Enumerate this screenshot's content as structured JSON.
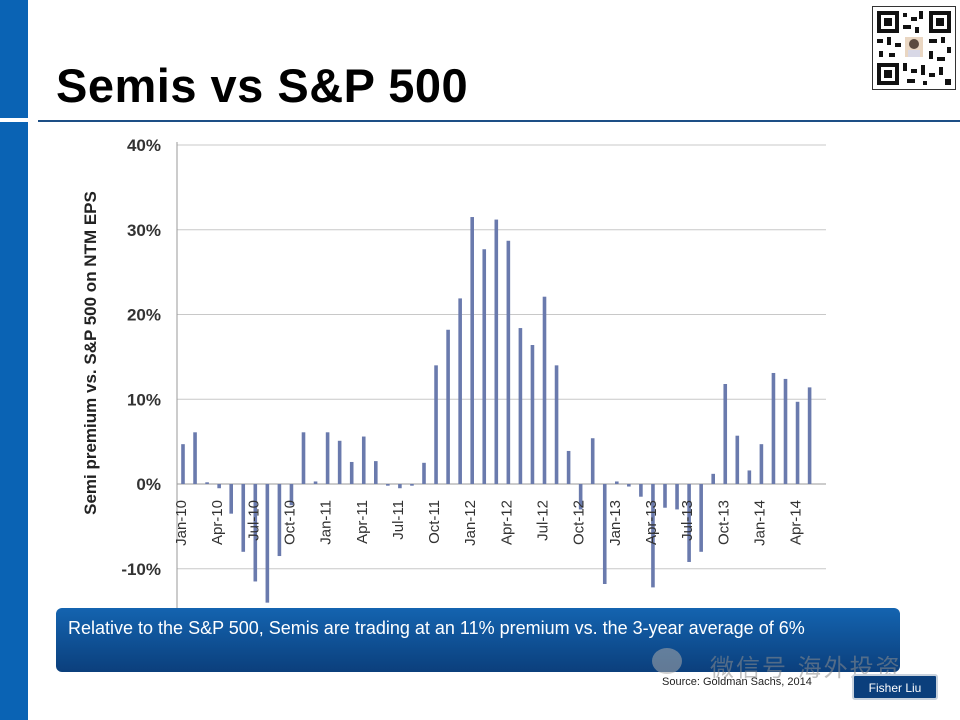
{
  "slide": {
    "title": "Semis vs S&P 500",
    "callout": "Relative to the S&P 500, Semis are trading at an 11% premium vs. the 3-year average of 6%",
    "source": "Source: Goldman Sachs, 2014",
    "watermark": "微信号 海外投资",
    "tag": "Fisher Liu"
  },
  "chart_data": {
    "type": "bar",
    "title": "",
    "xlabel": "",
    "ylabel": "Semi premium vs. S&P 500 on NTM EPS",
    "ylim": [
      -14,
      40
    ],
    "yticks": [
      "40%",
      "30%",
      "20%",
      "10%",
      "0%",
      "-10%"
    ],
    "ytick_values": [
      40,
      30,
      20,
      10,
      0,
      -10
    ],
    "xtick_labels": [
      "Jan-10",
      "Apr-10",
      "Jul-10",
      "Oct-10",
      "Jan-11",
      "Apr-11",
      "Jul-11",
      "Oct-11",
      "Jan-12",
      "Apr-12",
      "Jul-12",
      "Oct-12",
      "Jan-13",
      "Apr-13",
      "Jul-13",
      "Oct-13",
      "Jan-14",
      "Apr-14"
    ],
    "xtick_every": 3,
    "bar_color": "#6a7aad",
    "grid": true,
    "values": [
      4.7,
      6.1,
      0.2,
      -0.5,
      -3.5,
      -8.0,
      -11.5,
      -14.0,
      -8.5,
      -2.5,
      6.1,
      0.3,
      6.1,
      5.1,
      2.6,
      5.6,
      2.7,
      -0.2,
      -0.5,
      -0.2,
      2.5,
      14.0,
      18.2,
      21.9,
      31.5,
      27.7,
      31.2,
      28.7,
      18.4,
      16.4,
      22.1,
      14.0,
      3.9,
      -3.0,
      5.4,
      -11.8,
      0.3,
      -0.3,
      -1.5,
      -12.2,
      -2.8,
      -3.0,
      -9.2,
      -8.0,
      1.2,
      11.8,
      5.7,
      1.6,
      4.7,
      13.1,
      12.4,
      9.7,
      11.4
    ]
  }
}
